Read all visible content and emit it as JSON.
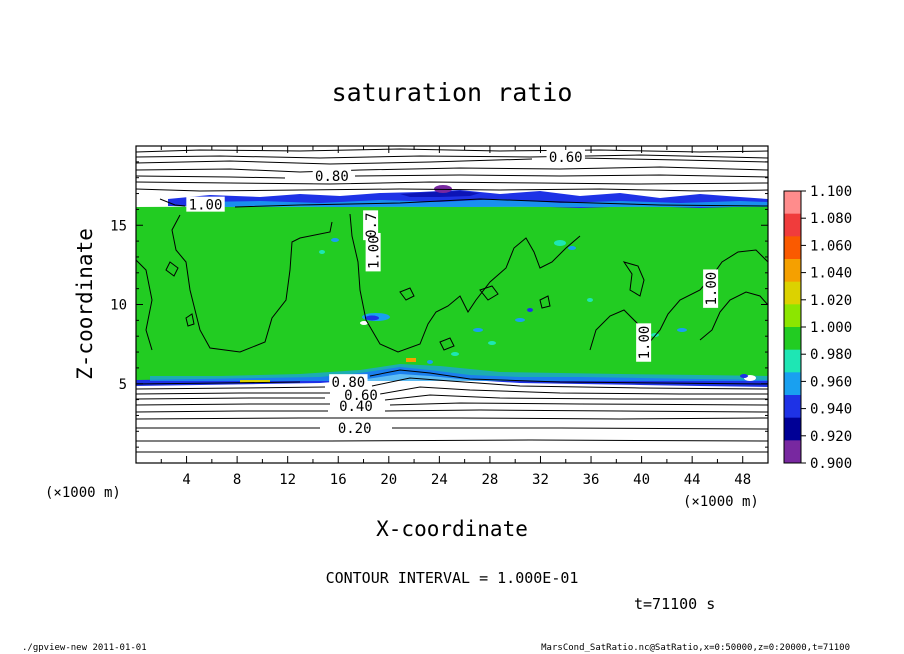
{
  "chart_data": {
    "type": "heatmap",
    "title": "saturation ratio",
    "xlabel": "X-coordinate",
    "ylabel": "Z-coordinate",
    "x_unit": "(×1000 m)",
    "y_unit": "(×1000 m)",
    "xlim": [
      0,
      50
    ],
    "ylim": [
      0,
      20
    ],
    "x_ticks": [
      "4",
      "8",
      "12",
      "16",
      "20",
      "24",
      "28",
      "32",
      "36",
      "40",
      "44",
      "48"
    ],
    "y_ticks": [
      "5",
      "10",
      "15"
    ],
    "colorbar": {
      "labels": [
        "1.100",
        "1.080",
        "1.060",
        "1.040",
        "1.020",
        "1.000",
        "0.980",
        "0.960",
        "0.940",
        "0.920",
        "0.900"
      ],
      "colors": [
        "#ff8c8c",
        "#f03c3c",
        "#fa5a00",
        "#f5a000",
        "#dcd200",
        "#8ce600",
        "#22cc22",
        "#1ee6b4",
        "#19a0f0",
        "#1e32e6",
        "#000096",
        "#7828a0"
      ]
    },
    "contour_labels": [
      {
        "text": "0.60",
        "x": 34.0,
        "y": 19.3
      },
      {
        "text": "0.80",
        "x": 15.5,
        "y": 18.1
      },
      {
        "text": "1.00",
        "x": 5.5,
        "y": 16.3
      },
      {
        "text": "0.7",
        "x": 18.6,
        "y": 15.0
      },
      {
        "text": "1.00",
        "x": 18.8,
        "y": 13.3
      },
      {
        "text": "1.00",
        "x": 45.5,
        "y": 11.0
      },
      {
        "text": "1.00",
        "x": 40.2,
        "y": 7.6
      },
      {
        "text": "0.80",
        "x": 16.8,
        "y": 5.1
      },
      {
        "text": "0.60",
        "x": 17.8,
        "y": 4.3
      },
      {
        "text": "0.40",
        "x": 17.4,
        "y": 3.6
      },
      {
        "text": "0.20",
        "x": 17.3,
        "y": 2.2
      }
    ],
    "contour_interval_text": "CONTOUR INTERVAL = 1.000E-01",
    "time_text": "t=71100 s"
  },
  "footer": {
    "left": "./gpview-new  2011-01-01",
    "right": "MarsCond_SatRatio.nc@SatRatio,x=0:50000,z=0:20000,t=71100"
  }
}
